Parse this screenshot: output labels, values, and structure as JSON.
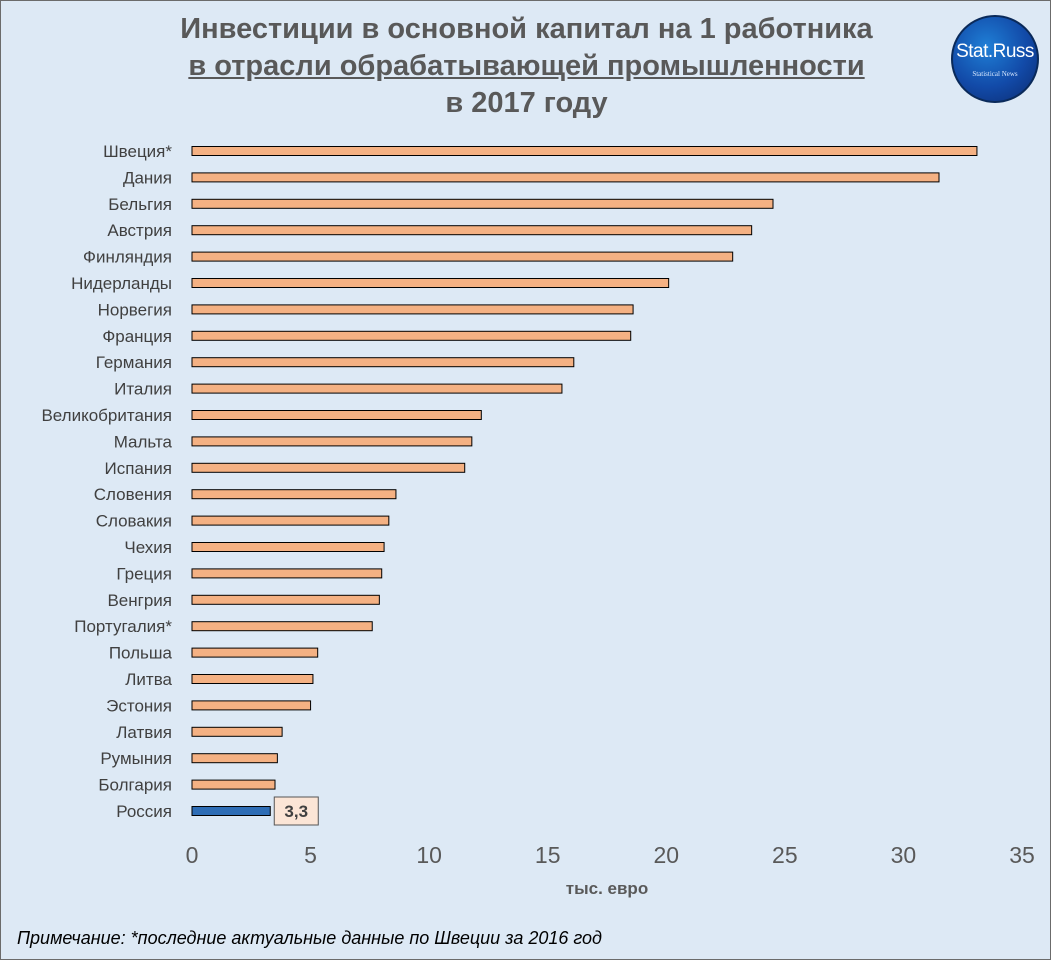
{
  "title": {
    "line1": "Инвестиции в основной капитал  на 1 работника",
    "line2": "в отрасли обрабатывающей промышленности",
    "line3": "в 2017 году"
  },
  "logo": {
    "text": "Stat.Russ",
    "subtitle": "Statistical News"
  },
  "chart_data": {
    "type": "bar",
    "orientation": "horizontal",
    "categories": [
      "Швеция*",
      "Дания",
      "Бельгия",
      "Австрия",
      "Финляндия",
      "Нидерланды",
      "Норвегия",
      "Франция",
      "Германия",
      "Италия",
      "Великобритания",
      "Мальта",
      "Испания",
      "Словения",
      "Словакия",
      "Чехия",
      "Греция",
      "Венгрия",
      "Португалия*",
      "Польша",
      "Литва",
      "Эстония",
      "Латвия",
      "Румыния",
      "Болгария",
      "Россия"
    ],
    "values": [
      33.1,
      31.5,
      24.5,
      23.6,
      22.8,
      20.1,
      18.6,
      18.5,
      16.1,
      15.6,
      12.2,
      11.8,
      11.5,
      8.6,
      8.3,
      8.1,
      8.0,
      7.9,
      7.6,
      5.3,
      5.1,
      5.0,
      3.8,
      3.6,
      3.5,
      3.3
    ],
    "highlight": {
      "category": "Россия",
      "label": "3,3",
      "color": "#2e6db5"
    },
    "bar_color": "#f4b183",
    "xlabel": "тыс. евро",
    "xlim": [
      0,
      35
    ],
    "xticks": [
      0,
      5,
      10,
      15,
      20,
      25,
      30,
      35
    ],
    "grid": false
  },
  "note": "Примечание: *последние актуальные данные по Швеции за 2016 год"
}
